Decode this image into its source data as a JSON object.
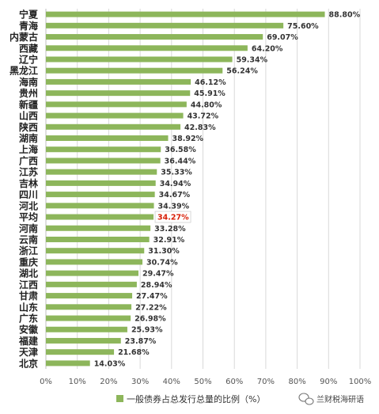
{
  "chart_data": {
    "type": "bar",
    "orientation": "horizontal",
    "categories": [
      "宁夏",
      "青海",
      "内蒙古",
      "西藏",
      "辽宁",
      "黑龙江",
      "海南",
      "贵州",
      "新疆",
      "山西",
      "陕西",
      "湖南",
      "上海",
      "广西",
      "江苏",
      "吉林",
      "四川",
      "河北",
      "平均",
      "河南",
      "云南",
      "浙江",
      "重庆",
      "湖北",
      "江西",
      "甘肃",
      "山东",
      "广东",
      "安徽",
      "福建",
      "天津",
      "北京"
    ],
    "values": [
      88.8,
      75.6,
      69.07,
      64.2,
      59.34,
      56.24,
      46.12,
      45.91,
      44.8,
      43.72,
      42.83,
      38.92,
      36.58,
      36.44,
      35.33,
      34.94,
      34.67,
      34.39,
      34.27,
      33.28,
      32.91,
      31.3,
      30.74,
      29.47,
      28.94,
      27.47,
      27.22,
      26.98,
      25.93,
      23.87,
      21.68,
      14.03
    ],
    "data_labels": [
      "88.80%",
      "75.60%",
      "69.07%",
      "64.20%",
      "59.34%",
      "56.24%",
      "46.12%",
      "45.91%",
      "44.80%",
      "43.72%",
      "42.83%",
      "38.92%",
      "36.58%",
      "36.44%",
      "35.33%",
      "34.94%",
      "34.67%",
      "34.39%",
      "34.27%",
      "33.28%",
      "32.91%",
      "31.30%",
      "30.74%",
      "29.47%",
      "28.94%",
      "27.47%",
      "27.22%",
      "26.98%",
      "25.93%",
      "23.87%",
      "21.68%",
      "14.03%"
    ],
    "highlight_category": "平均",
    "xlim": [
      0,
      100
    ],
    "x_ticks": [
      "0%",
      "10%",
      "20%",
      "30%",
      "40%",
      "50%",
      "60%",
      "70%",
      "80%",
      "90%",
      "100%"
    ],
    "series_name": "一般债券占总发行总量的比例（%）",
    "legend_position": "bottom",
    "grid": true,
    "colors": {
      "bar": "#8db65b",
      "grid": "#d9d9d9",
      "highlight_label": "#d81e06"
    }
  },
  "watermark": {
    "text": "兰财税海研语",
    "icon": "wechat-icon"
  }
}
